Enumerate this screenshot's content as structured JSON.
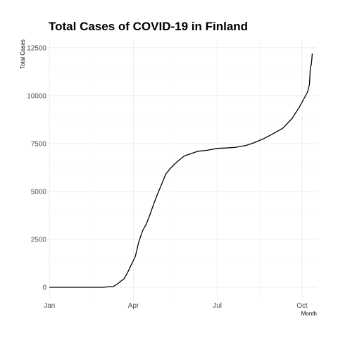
{
  "chart_data": {
    "type": "line",
    "title": "Total Cases of COVID-19 in Finland",
    "xlabel": "Month",
    "ylabel": "Total Cases",
    "x_axis": {
      "type": "date",
      "range": [
        "2019-12-31",
        "2020-10-17"
      ],
      "ticks": [
        "Jan",
        "Apr",
        "Jul",
        "Oct"
      ]
    },
    "y_axis": {
      "range": [
        -700,
        12900
      ],
      "ticks": [
        0,
        2500,
        5000,
        7500,
        10000,
        12500
      ]
    },
    "grid": true,
    "legend": "none",
    "series": [
      {
        "x": [
          "2020-01-01",
          "2020-01-15",
          "2020-02-01",
          "2020-02-15",
          "2020-02-29",
          "2020-03-05",
          "2020-03-10",
          "2020-03-14",
          "2020-03-18",
          "2020-03-22",
          "2020-03-26",
          "2020-03-30",
          "2020-04-03",
          "2020-04-07",
          "2020-04-11",
          "2020-04-15",
          "2020-04-19",
          "2020-04-23",
          "2020-04-27",
          "2020-05-01",
          "2020-05-06",
          "2020-05-11",
          "2020-05-16",
          "2020-05-21",
          "2020-05-26",
          "2020-06-01",
          "2020-06-10",
          "2020-06-20",
          "2020-07-01",
          "2020-07-10",
          "2020-07-20",
          "2020-08-01",
          "2020-08-10",
          "2020-08-20",
          "2020-08-30",
          "2020-09-10",
          "2020-09-20",
          "2020-09-28",
          "2020-10-03",
          "2020-10-07",
          "2020-10-09",
          "2020-10-10",
          "2020-10-11",
          "2020-10-12"
        ],
        "y": [
          0,
          0,
          0,
          0,
          0,
          30,
          40,
          150,
          300,
          450,
          800,
          1200,
          1600,
          2400,
          2950,
          3300,
          3800,
          4350,
          4850,
          5300,
          5900,
          6200,
          6450,
          6650,
          6850,
          6950,
          7100,
          7150,
          7250,
          7270,
          7300,
          7400,
          7550,
          7750,
          8000,
          8300,
          8800,
          9400,
          9850,
          10200,
          10600,
          11550,
          11600,
          12200
        ]
      }
    ]
  }
}
